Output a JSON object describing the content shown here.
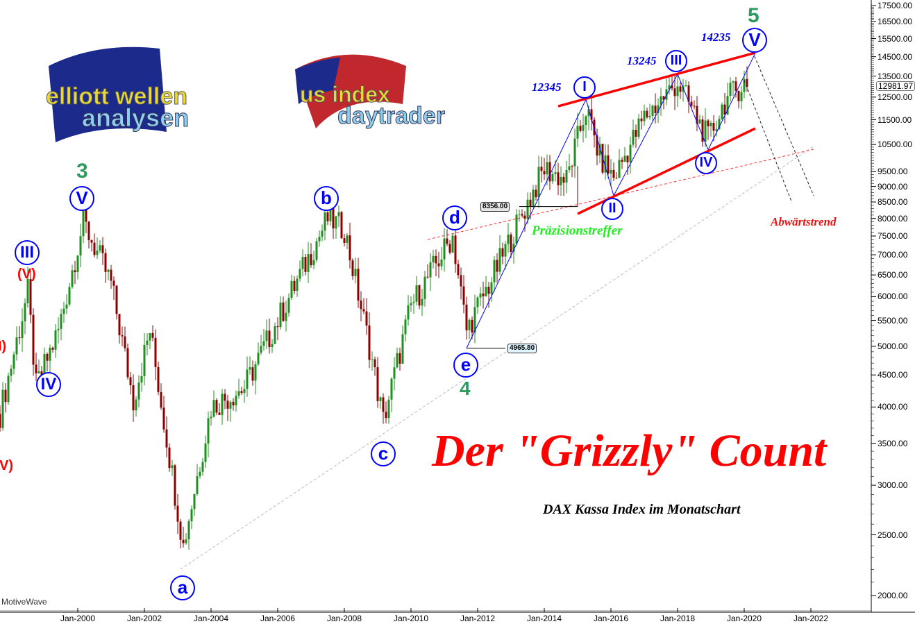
{
  "chart_data": {
    "type": "candlestick",
    "title": "Der \"Grizzly\" Count",
    "subtitle": "DAX Kassa Index im Monatschart",
    "y_scale": "log",
    "ylim": [
      2000,
      17500
    ],
    "y_ticks": [
      "17500.00",
      "16500.00",
      "15500.00",
      "14500.00",
      "13500.00",
      "12500.00",
      "11500.00",
      "10500.00",
      "9500.00",
      "9000.00",
      "8500.00",
      "8000.00",
      "7500.00",
      "7000.00",
      "6500.00",
      "6000.00",
      "5500.00",
      "5000.00",
      "4500.00",
      "4000.00",
      "3500.00",
      "3000.00",
      "2500.00",
      "2000.00"
    ],
    "x_ticks": [
      "Jan-2000",
      "Jan-2002",
      "Jan-2004",
      "Jan-2006",
      "Jan-2008",
      "Jan-2010",
      "Jan-2012",
      "Jan-2014",
      "Jan-2016",
      "Jan-2018",
      "Jan-2020",
      "Jan-2022"
    ],
    "last_price": "12981.97",
    "grid": false,
    "approx_monthly_pivots": [
      [
        "1997-09",
        3900
      ],
      [
        "1998-07",
        6100
      ],
      [
        "1998-10",
        4300
      ],
      [
        "1999-06",
        5300
      ],
      [
        "2000-03",
        7900
      ],
      [
        "2001-01",
        6300
      ],
      [
        "2001-09",
        4100
      ],
      [
        "2002-03",
        5300
      ],
      [
        "2003-03",
        2400
      ],
      [
        "2004-01",
        4000
      ],
      [
        "2005-01",
        4300
      ],
      [
        "2006-01",
        5500
      ],
      [
        "2007-07",
        8000
      ],
      [
        "2008-01",
        7700
      ],
      [
        "2008-10",
        5000
      ],
      [
        "2009-03",
        3800
      ],
      [
        "2010-01",
        5800
      ],
      [
        "2011-04",
        7500
      ],
      [
        "2011-09",
        5300
      ],
      [
        "2012-06",
        6400
      ],
      [
        "2013-06",
        8300
      ],
      [
        "2014-01",
        9600
      ],
      [
        "2014-09",
        9200
      ],
      [
        "2015-04",
        12000
      ],
      [
        "2015-09",
        10000
      ],
      [
        "2016-02",
        9300
      ],
      [
        "2017-01",
        11600
      ],
      [
        "2018-01",
        13200
      ],
      [
        "2018-12",
        10700
      ],
      [
        "2019-06",
        12300
      ],
      [
        "2020-01",
        13200
      ],
      [
        "2020-02",
        12981.97
      ]
    ],
    "overlays": {
      "wave_path_blue": [
        [
          "2011-09",
          4965.8
        ],
        [
          "2015-04",
          12390
        ],
        [
          "2016-02",
          8700
        ],
        [
          "2018-01",
          13600
        ],
        [
          "2018-12",
          10300
        ],
        [
          "2020-05",
          14700
        ]
      ],
      "channel_upper_red": [
        [
          "2014-06",
          12086
        ],
        [
          "2020-05",
          14714
        ]
      ],
      "channel_lower_red": [
        [
          "2015-01",
          8137
        ],
        [
          "2020-05",
          11140
        ]
      ],
      "trendline_red_dashed": [
        [
          "2010-07",
          7405
        ],
        [
          "2022-02",
          10318
        ]
      ],
      "trendline_grey_dashed": [
        [
          "2003-02",
          2203
        ],
        [
          "2022-02",
          10430
        ]
      ],
      "projection_black_dashed_1": [
        [
          "2020-01",
          13300
        ],
        [
          "2021-06",
          8521
        ]
      ],
      "projection_black_dashed_2": [
        [
          "2020-04",
          14765
        ],
        [
          "2022-02",
          8700
        ]
      ],
      "level_8356": [
        [
          "2013-04",
          8356
        ],
        [
          "2015-01",
          8356
        ]
      ],
      "level_4965": [
        [
          "2011-09",
          4965.8
        ],
        [
          "2012-11",
          4965.8
        ]
      ]
    }
  },
  "annotations": {
    "wave5": "5",
    "wave5_value": "14235",
    "waveV_top": "V",
    "waveIII_value": "13245",
    "waveIII_top": "III",
    "waveI_value": "12345",
    "waveI_top": "I",
    "waveII_top": "II",
    "waveIV_top": "IV",
    "wave3": "3",
    "waveV_left": "V",
    "waveIII_left": "III",
    "waveV_red": "(V)",
    "waveIV_left": "IV",
    "partial_left_1": "I)",
    "partial_left_2": "V)",
    "wave_a": "a",
    "wave_b": "b",
    "wave_c": "c",
    "wave_d": "d",
    "wave_e": "e",
    "wave4": "4",
    "price_8356": "8356.00",
    "price_4965": "4965.80",
    "praezision": "Präzisionstreffer",
    "abwaerts": "Abwärtstrend",
    "big_title": "Der \"Grizzly\" Count",
    "subtitle": "DAX Kassa Index im Monatschart",
    "watermark": "MotiveWave"
  },
  "logos": {
    "elliott": {
      "line1": "elliott wellen",
      "line2": "analysen"
    },
    "usindex": {
      "line1": "us index",
      "line2": "daytrader"
    }
  },
  "colors": {
    "up": "#1f8f1f",
    "down": "#8b0000",
    "wave_blue": "#0000ff",
    "channel_red": "#ff0000",
    "wave_green": "#2e9a60"
  }
}
